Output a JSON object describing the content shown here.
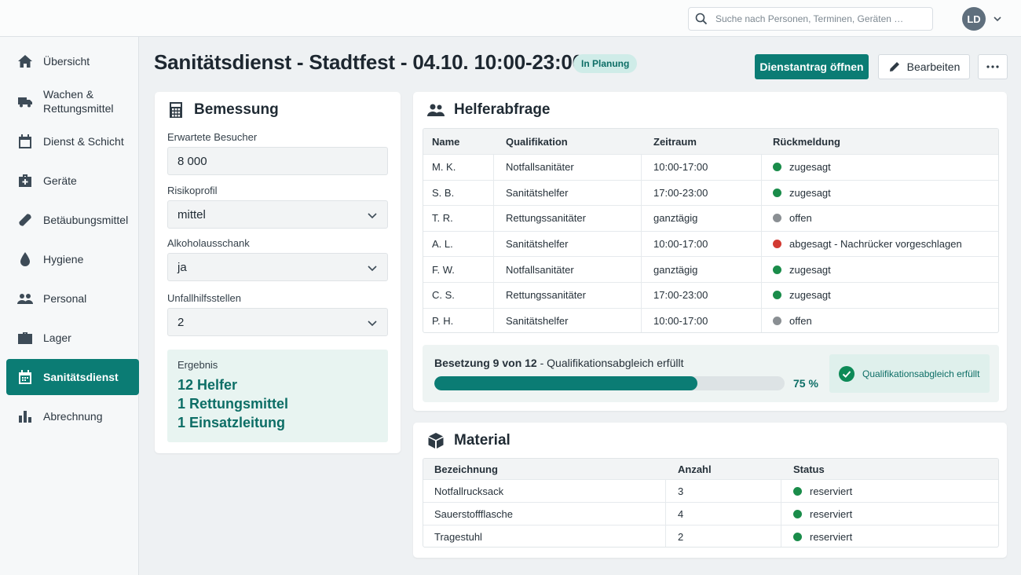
{
  "topbar": {
    "search_placeholder": "Suche nach Personen, Terminen, Geräten …",
    "user_initials": "LD"
  },
  "sidebar": {
    "items": [
      {
        "label": "Übersicht",
        "icon": "home-icon"
      },
      {
        "label": "Wachen & Rettungsmittel",
        "icon": "truck-icon"
      },
      {
        "label": "Dienst & Schicht",
        "icon": "calendar-icon"
      },
      {
        "label": "Geräte",
        "icon": "medkit-icon"
      },
      {
        "label": "Betäubungsmittel",
        "icon": "pill-icon"
      },
      {
        "label": "Hygiene",
        "icon": "drop-icon"
      },
      {
        "label": "Personal",
        "icon": "people-icon"
      },
      {
        "label": "Lager",
        "icon": "box-icon"
      },
      {
        "label": "Sanitätsdienst",
        "icon": "calendar-grid-icon",
        "active": true
      },
      {
        "label": "Abrechnung",
        "icon": "bar-chart-icon"
      }
    ]
  },
  "header": {
    "title": "Sanitätsdienst - Stadtfest - 04.10. 10:00-23:00",
    "status_badge": "In Planung",
    "primary_button": "Dienstantrag öffnen",
    "edit_button": "Bearbeiten"
  },
  "bemessung": {
    "title": "Bemessung",
    "fields": [
      {
        "label": "Erwartete Besucher",
        "value": "8 000"
      },
      {
        "label": "Risikoprofil",
        "value": "mittel"
      },
      {
        "label": "Alkoholausschank",
        "value": "ja"
      },
      {
        "label": "Unfallhilfsstellen",
        "value": "2"
      }
    ],
    "result": {
      "label": "Ergebnis",
      "lines": [
        "12 Helfer",
        "1 Rettungsmittel",
        "1 Einsatzleitung"
      ]
    }
  },
  "helfer": {
    "title": "Helferabfrage",
    "columns": [
      "Name",
      "Qualifikation",
      "Zeitraum",
      "Rückmeldung"
    ],
    "rows": [
      {
        "name": "M. K.",
        "qual": "Notfallsanitäter",
        "time": "10:00-17:00",
        "status": "zugesagt",
        "color": "#1a8c4a"
      },
      {
        "name": "S. B.",
        "qual": "Sanitätshelfer",
        "time": "17:00-23:00",
        "status": "zugesagt",
        "color": "#1a8c4a"
      },
      {
        "name": "T. R.",
        "qual": "Rettungssanitäter",
        "time": "ganztägig",
        "status": "offen",
        "color": "#8a8f93"
      },
      {
        "name": "A. L.",
        "qual": "Sanitätshelfer",
        "time": "10:00-17:00",
        "status": "abgesagt - Nachrücker vorgeschlagen",
        "color": "#d23a32"
      },
      {
        "name": "F. W.",
        "qual": "Notfallsanitäter",
        "time": "ganztägig",
        "status": "zugesagt",
        "color": "#1a8c4a"
      },
      {
        "name": "C. S.",
        "qual": "Rettungssanitäter",
        "time": "17:00-23:00",
        "status": "zugesagt",
        "color": "#1a8c4a"
      },
      {
        "name": "P. H.",
        "qual": "Sanitätshelfer",
        "time": "10:00-17:00",
        "status": "offen",
        "color": "#8a8f93"
      }
    ],
    "occupancy": {
      "prefix": "Besetzung 9 von 12",
      "suffix": " - Qualifikationsabgleich erfüllt",
      "fraction": 0.75,
      "percent_label": "75 %",
      "qual_label": "Qualifikationsabgleich erfüllt"
    }
  },
  "material": {
    "title": "Material",
    "columns": [
      "Bezeichnung",
      "Anzahl",
      "Status"
    ],
    "rows": [
      {
        "name": "Notfallrucksack",
        "count": "3",
        "status": "reserviert",
        "color": "#1a8c4a"
      },
      {
        "name": "Sauerstoffflasche",
        "count": "4",
        "status": "reserviert",
        "color": "#1a8c4a"
      },
      {
        "name": "Tragestuhl",
        "count": "2",
        "status": "reserviert",
        "color": "#1a8c4a"
      }
    ]
  }
}
